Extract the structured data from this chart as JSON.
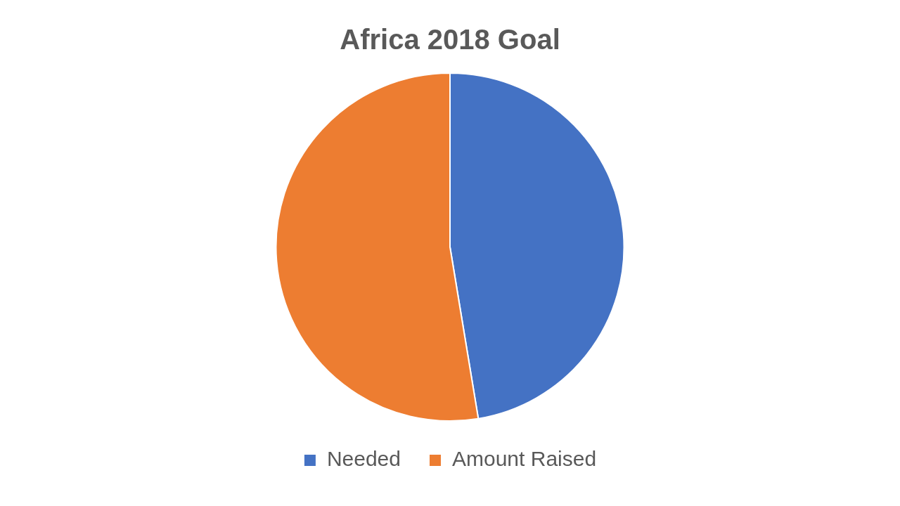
{
  "chart_data": {
    "type": "pie",
    "title": "Africa 2018 Goal",
    "categories": [
      "Needed",
      "Amount Raised"
    ],
    "values": [
      47.4,
      52.6
    ],
    "colors": [
      "#4472c4",
      "#ed7d31"
    ],
    "legend": "bottom"
  }
}
